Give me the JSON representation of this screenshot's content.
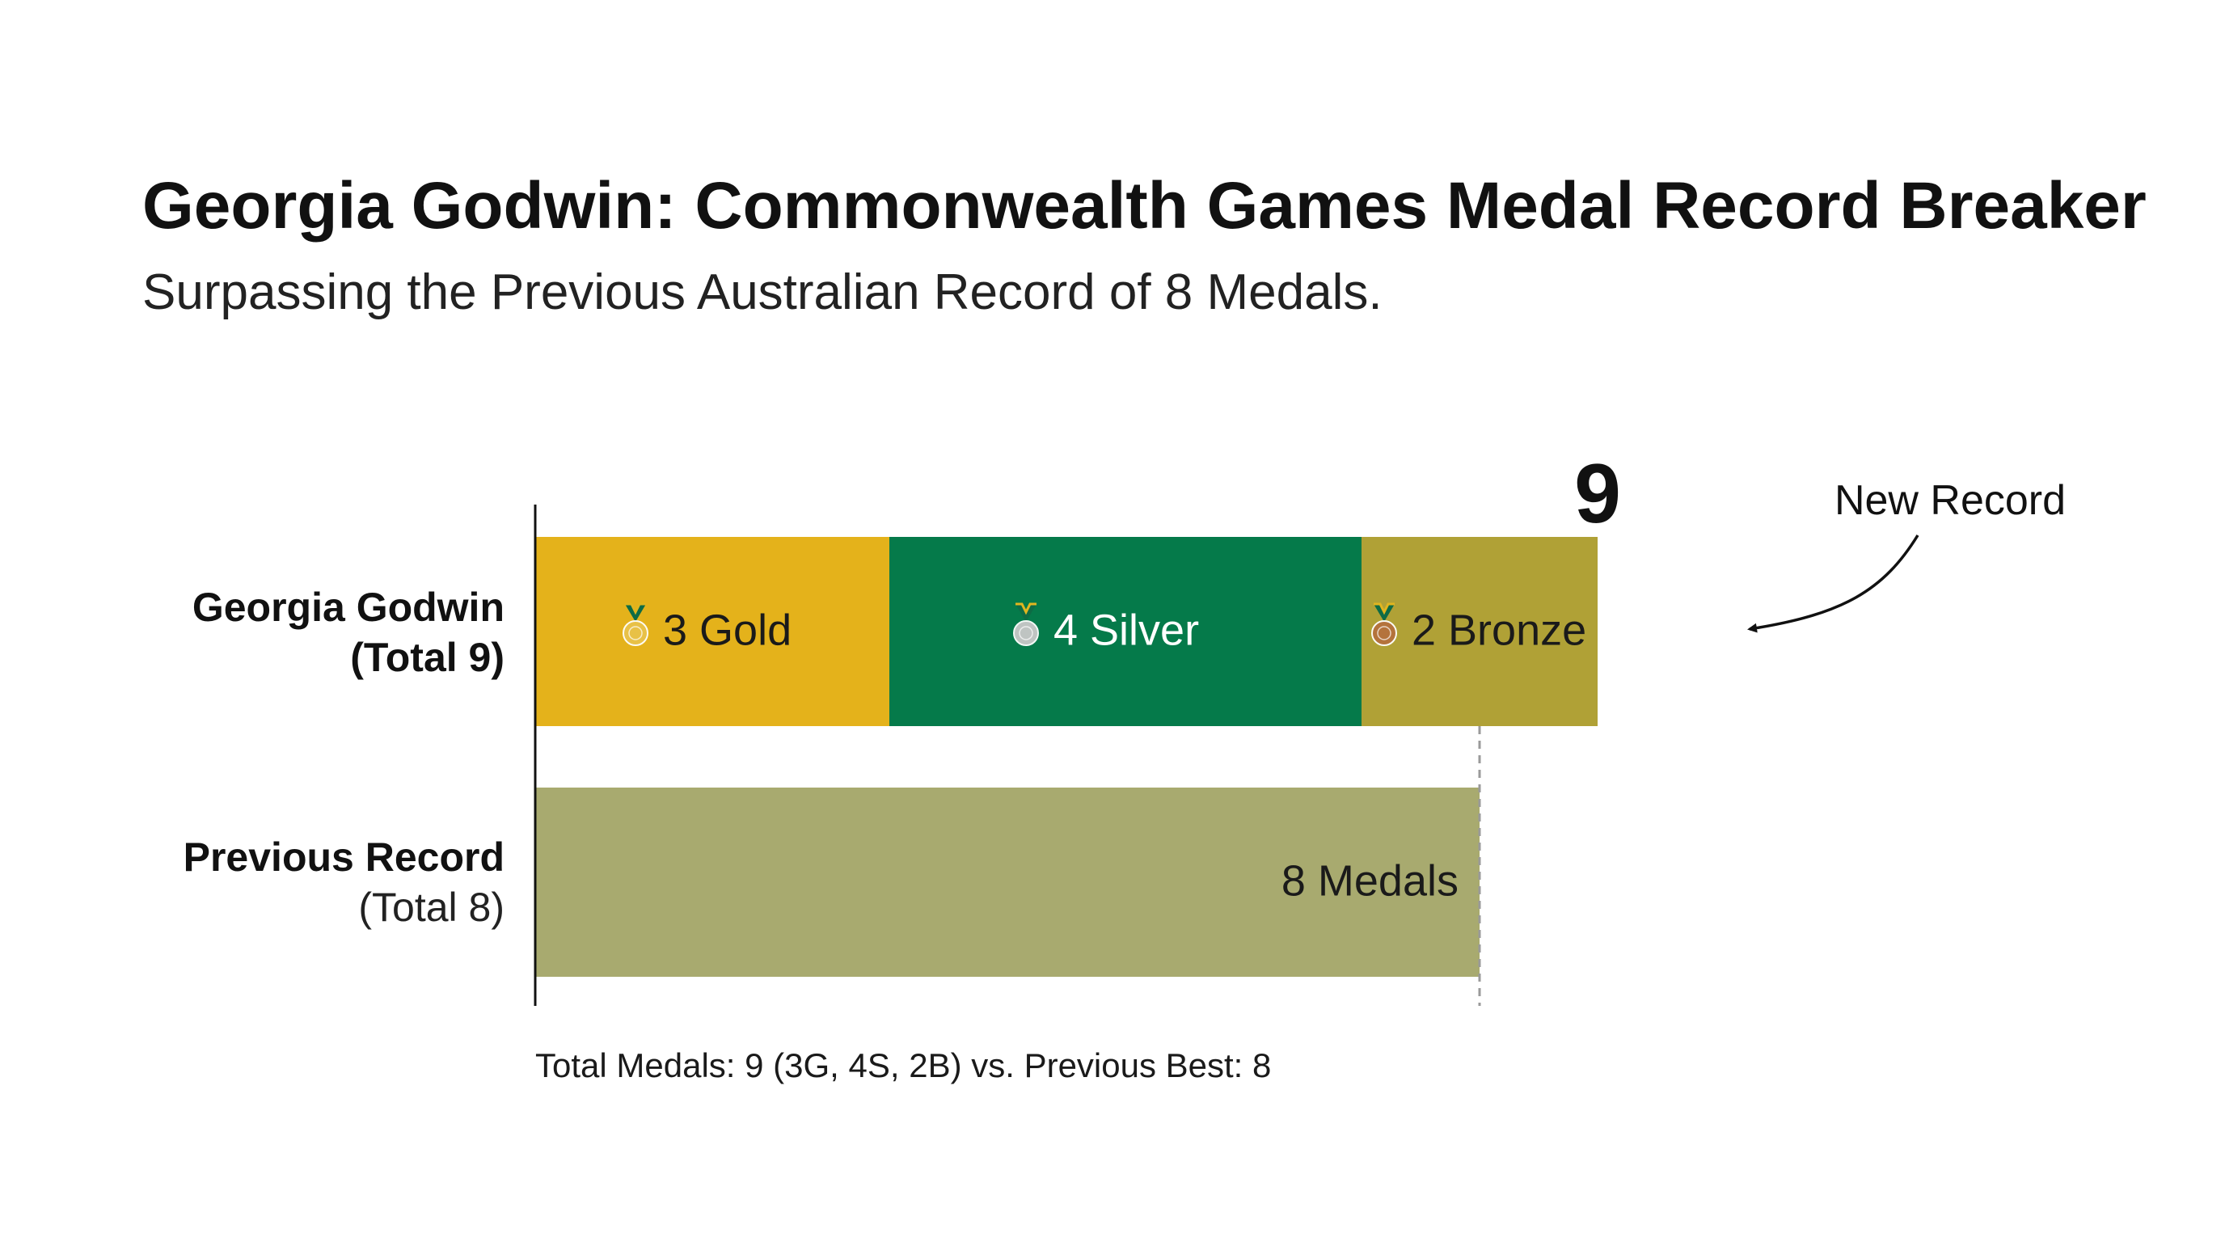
{
  "chart_data": {
    "type": "bar",
    "orientation": "horizontal",
    "stacked": true,
    "title": "Georgia Godwin: Commonwealth Games Medal Record Breaker",
    "subtitle": "Surpassing the Previous Australian Record of 8 Medals.",
    "xlim": [
      0,
      9
    ],
    "grid": false,
    "legend": "none",
    "categories": [
      {
        "name": "Georgia Godwin",
        "total_label": "(Total 9)"
      },
      {
        "name": "Previous Record",
        "total_label": "(Total 8)"
      }
    ],
    "rows": [
      {
        "segments": [
          {
            "value": 3,
            "label": "3 Gold",
            "color": "#E4B21B",
            "icon": "gold-medal-icon"
          },
          {
            "value": 4,
            "label": "4 Silver",
            "color": "#057A4A",
            "icon": "silver-medal-icon"
          },
          {
            "value": 2,
            "label": "2 Bronze",
            "color": "#B0A136",
            "icon": "bronze-medal-icon"
          }
        ],
        "total": 9,
        "total_text": "9"
      },
      {
        "segments": [
          {
            "value": 8,
            "label": "8 Medals",
            "color": "#A8AA6F"
          }
        ],
        "total": 8
      }
    ],
    "reference_line": {
      "value": 8,
      "style": "dashed"
    },
    "annotation": {
      "text": "New Record",
      "points_to": "Georgia Godwin"
    },
    "footnote": "Total Medals: 9 (3G, 4S, 2B) vs. Previous Best: 8"
  }
}
